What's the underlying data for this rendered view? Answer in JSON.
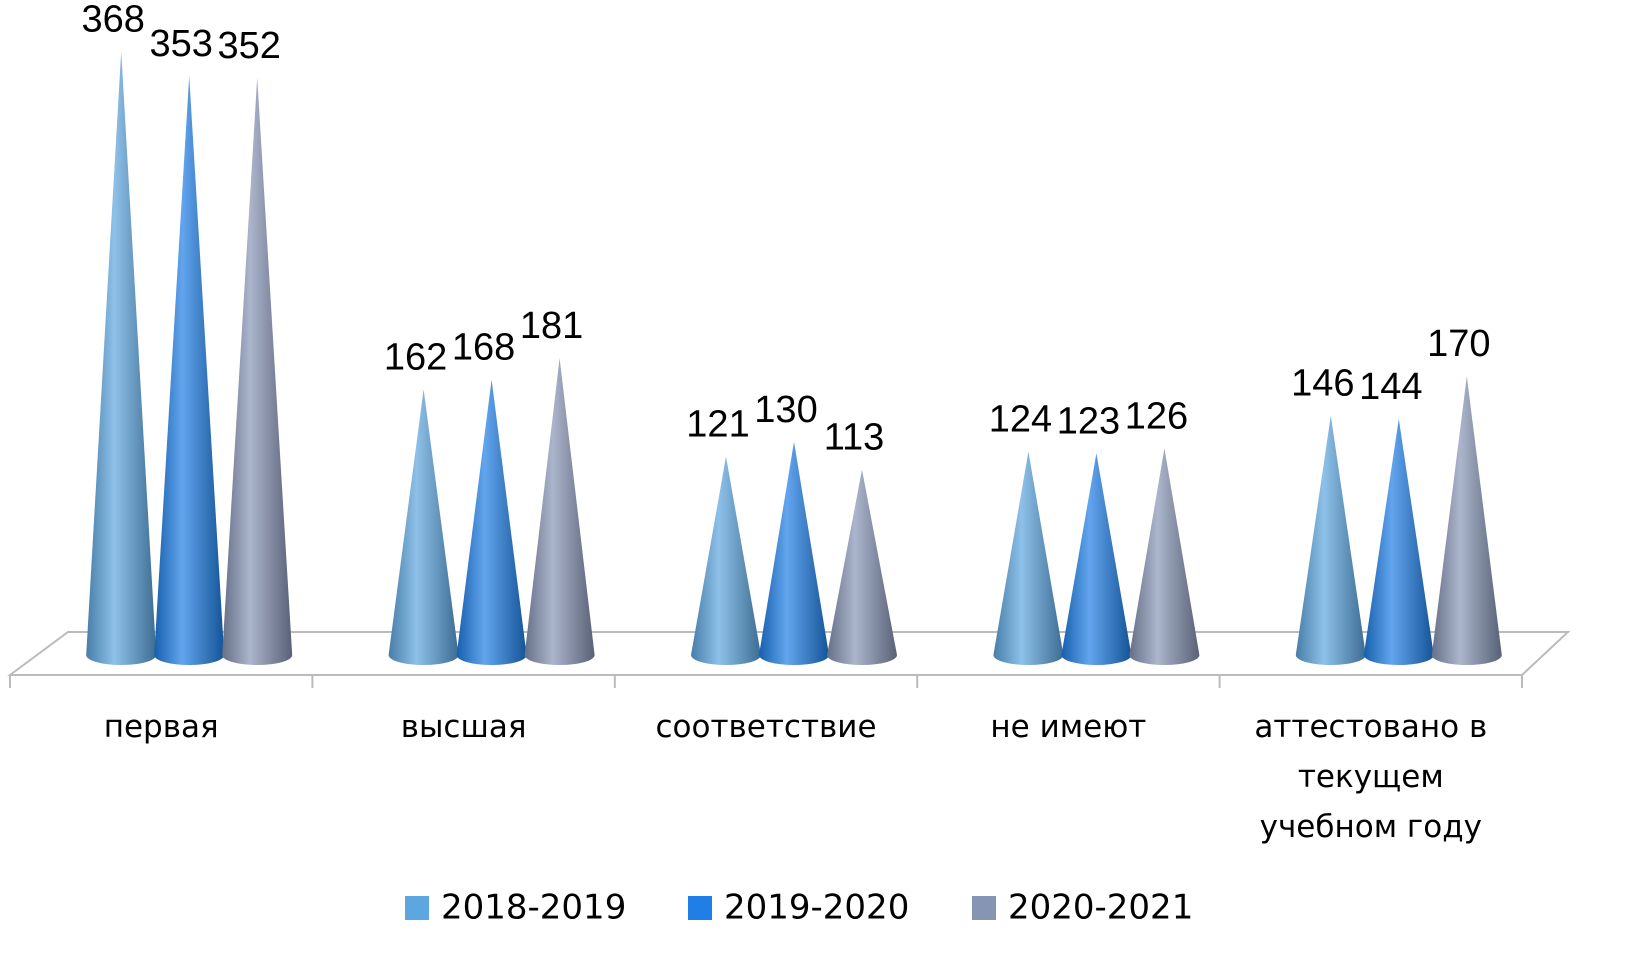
{
  "chart_data": {
    "type": "cone",
    "categories": [
      "первая",
      "высшая",
      "соответствие",
      "не имеют",
      "аттестовано в текущем учебном году"
    ],
    "series": [
      {
        "name": "2018-2019",
        "color": "#5ea6e0",
        "values": [
          368,
          162,
          121,
          124,
          146
        ]
      },
      {
        "name": "2019-2020",
        "color": "#1f7fe6",
        "values": [
          353,
          168,
          130,
          123,
          144
        ]
      },
      {
        "name": "2020-2021",
        "color": "#8795b5",
        "values": [
          352,
          181,
          113,
          126,
          170
        ]
      }
    ],
    "legend": "bottom"
  }
}
